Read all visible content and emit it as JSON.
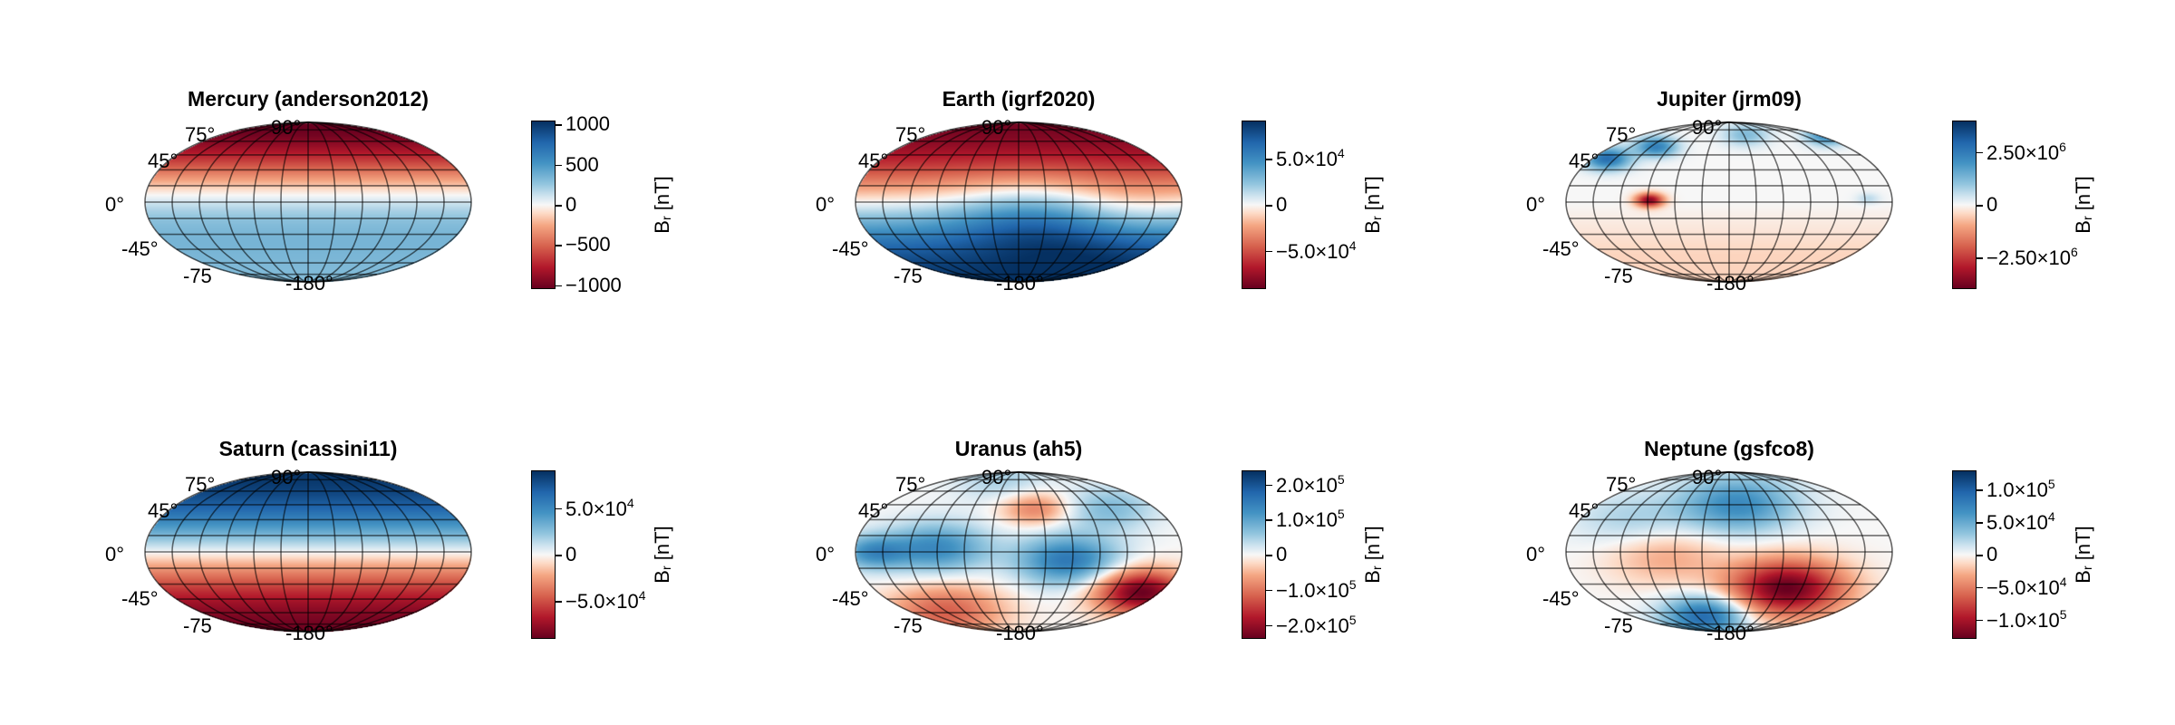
{
  "chart_data": [
    {
      "type": "heatmap",
      "title": "Mercury (anderson2012)",
      "projection": "mollweide",
      "colormap": "RdBu",
      "vmin": -1050,
      "vmax": 1050,
      "ticks": [
        1000,
        500,
        0,
        -500,
        -1000
      ],
      "tick_labels": [
        {
          "m": "1000",
          "e": ""
        },
        {
          "m": "500",
          "e": ""
        },
        {
          "m": "0",
          "e": ""
        },
        {
          "m": "−500",
          "e": ""
        },
        {
          "m": "−1000",
          "e": ""
        }
      ]
    },
    {
      "type": "heatmap",
      "title": "Earth (igrf2020)",
      "projection": "mollweide",
      "colormap": "RdBu",
      "vmin": -92000,
      "vmax": 92000,
      "ticks": [
        50000,
        0,
        -50000
      ],
      "tick_labels": [
        {
          "m": "5.0×10",
          "e": "4"
        },
        {
          "m": "0",
          "e": ""
        },
        {
          "m": "−5.0×10",
          "e": "4"
        }
      ]
    },
    {
      "type": "heatmap",
      "title": "Jupiter (jrm09)",
      "projection": "mollweide",
      "colormap": "RdBu",
      "vmin": -4000000,
      "vmax": 4000000,
      "ticks": [
        2500000,
        0,
        -2500000
      ],
      "tick_labels": [
        {
          "m": "2.50×10",
          "e": "6"
        },
        {
          "m": "0",
          "e": ""
        },
        {
          "m": "−2.50×10",
          "e": "6"
        }
      ]
    },
    {
      "type": "heatmap",
      "title": "Saturn (cassini11)",
      "projection": "mollweide",
      "colormap": "RdBu",
      "vmin": -91000,
      "vmax": 91000,
      "ticks": [
        50000,
        0,
        -50000
      ],
      "tick_labels": [
        {
          "m": "5.0×10",
          "e": "4"
        },
        {
          "m": "0",
          "e": ""
        },
        {
          "m": "−5.0×10",
          "e": "4"
        }
      ]
    },
    {
      "type": "heatmap",
      "title": "Uranus (ah5)",
      "projection": "mollweide",
      "colormap": "RdBu",
      "vmin": -240000,
      "vmax": 240000,
      "ticks": [
        200000,
        100000,
        0,
        -100000,
        -200000
      ],
      "tick_labels": [
        {
          "m": "2.0×10",
          "e": "5"
        },
        {
          "m": "1.0×10",
          "e": "5"
        },
        {
          "m": "0",
          "e": ""
        },
        {
          "m": "−1.0×10",
          "e": "5"
        },
        {
          "m": "−2.0×10",
          "e": "5"
        }
      ]
    },
    {
      "type": "heatmap",
      "title": "Neptune (gsfco8)",
      "projection": "mollweide",
      "colormap": "RdBu",
      "vmin": -130000,
      "vmax": 130000,
      "ticks": [
        100000,
        50000,
        0,
        -50000,
        -100000
      ],
      "tick_labels": [
        {
          "m": "1.0×10",
          "e": "5"
        },
        {
          "m": "5.0×10",
          "e": "4"
        },
        {
          "m": "0",
          "e": ""
        },
        {
          "m": "−5.0×10",
          "e": "4"
        },
        {
          "m": "−1.0×10",
          "e": "5"
        }
      ]
    }
  ],
  "colorbar_label": {
    "main": "B",
    "sub": "r",
    "unit": " [nT]"
  },
  "axis_labels": {
    "lat90": "90°",
    "lat75": "75°",
    "lat45": "45°",
    "lat0": "0°",
    "latm45": "-45°",
    "latm75": "-75",
    "lon": "-180°"
  }
}
